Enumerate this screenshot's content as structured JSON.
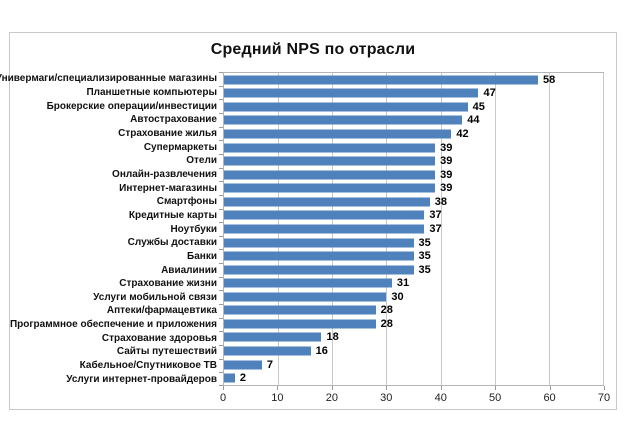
{
  "chart_data": {
    "type": "bar",
    "orientation": "horizontal",
    "title": "Средний NPS по отрасли",
    "categories": [
      "Универмаги/специализированные магазины",
      "Планшетные компьютеры",
      "Брокерские операции/инвестиции",
      "Автострахование",
      "Страхование жилья",
      "Супермаркеты",
      "Отели",
      "Онлайн-развлечения",
      "Интернет-магазины",
      "Смартфоны",
      "Кредитные карты",
      "Ноутбуки",
      "Службы доставки",
      "Банки",
      "Авиалинии",
      "Страхование жизни",
      "Услуги мобильной связи",
      "Аптеки/фармацевтика",
      "Программное обеспечение и приложения",
      "Страхование здоровья",
      "Сайты путешествий",
      "Кабельное/Спутниковое ТВ",
      "Услуги интернет-провайдеров"
    ],
    "values": [
      58,
      47,
      45,
      44,
      42,
      39,
      39,
      39,
      39,
      38,
      37,
      37,
      35,
      35,
      35,
      31,
      30,
      28,
      28,
      18,
      16,
      7,
      2
    ],
    "xlim": [
      0,
      70
    ],
    "xticks": [
      0,
      10,
      20,
      30,
      40,
      50,
      60,
      70
    ],
    "grid": true,
    "legend": false,
    "data_labels": true,
    "colors": {
      "bar": "#4f81bd",
      "gridline": "#c9c9c9",
      "plot_border": "#b5b5b5",
      "figure_border": "#c9c9c9",
      "text": "#000000"
    }
  }
}
